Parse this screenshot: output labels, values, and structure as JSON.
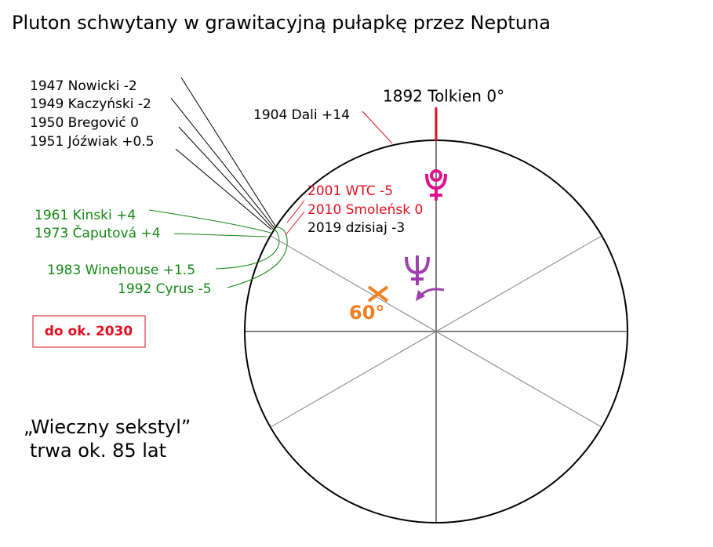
{
  "title": "Pluton schwytany w grawitacyjną pułapkę przez Neptuna",
  "top_label": "1892 Tolkien 0°",
  "dali_label": "1904 Dali +14",
  "black_labels": [
    "1947 Nowicki -2",
    "1949 Kaczyński -2",
    "1950 Bregović 0",
    "1951 Jóźwiak +0.5"
  ],
  "green_labels": [
    "1961 Kinski +4",
    "1973 Čaputová +4",
    "1983 Winehouse +1.5",
    "1992 Cyrus -5"
  ],
  "recent_labels": [
    "2001 WTC -5",
    "2010 Smoleńsk 0",
    "2019 dzisiaj -3"
  ],
  "angle_label": "60°",
  "box_label": "do ok. 2030",
  "note": [
    "„Wieczny sekstyl”",
    "trwa ok. 85 lat"
  ]
}
